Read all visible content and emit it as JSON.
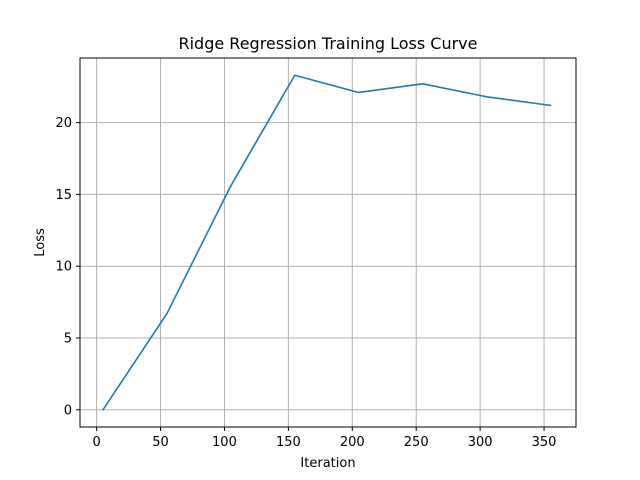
{
  "chart_data": {
    "type": "line",
    "title": "Ridge Regression Training Loss Curve",
    "xlabel": "Iteration",
    "ylabel": "Loss",
    "xlim": [
      -13,
      375
    ],
    "ylim": [
      -1.2,
      24.5
    ],
    "grid": true,
    "x_ticks": [
      0,
      50,
      100,
      150,
      200,
      250,
      300,
      350
    ],
    "y_ticks": [
      0,
      5,
      10,
      15,
      20
    ],
    "series": [
      {
        "color": "#1f77b4",
        "x": [
          5,
          55,
          105,
          155,
          205,
          255,
          305,
          355
        ],
        "y": [
          0.0,
          6.7,
          15.6,
          23.3,
          22.1,
          22.7,
          21.8,
          21.2
        ]
      }
    ]
  }
}
